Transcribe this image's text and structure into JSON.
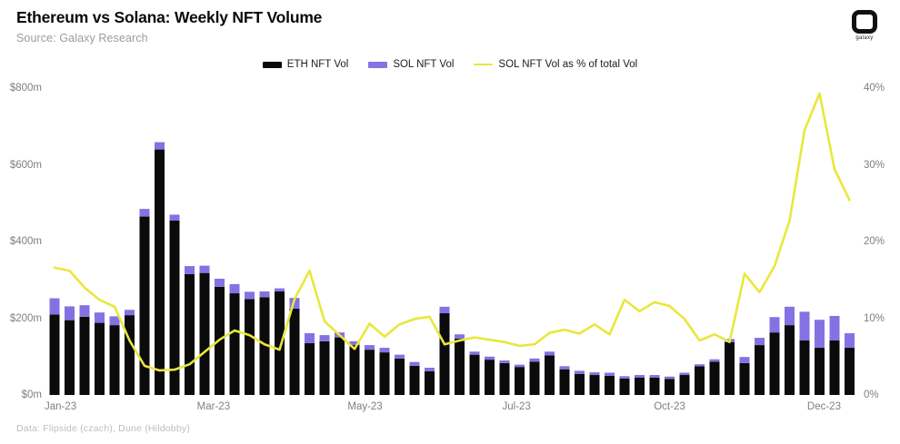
{
  "header": {
    "title": "Ethereum vs Solana: Weekly NFT Volume",
    "source": "Source: Galaxy Research",
    "logo_text": "galaxy"
  },
  "legend": [
    {
      "label": "ETH NFT Vol",
      "color": "#0b0b0b",
      "type": "bar"
    },
    {
      "label": "SOL NFT Vol",
      "color": "#8472e3",
      "type": "bar"
    },
    {
      "label": "SOL NFT Vol as % of total Vol",
      "color": "#e9e73c",
      "type": "line"
    }
  ],
  "footer": {
    "credit": "Data: Flipside (czach), Dune (Hildobby)"
  },
  "chart_data": {
    "type": "bar",
    "subtype": "stacked-bars-with-line",
    "title": "Ethereum vs Solana: Weekly NFT Volume",
    "x_unit": "week of 2023",
    "grid": false,
    "legend_position": "top",
    "ylim_left": [
      0,
      800
    ],
    "ylim_right": [
      0,
      40
    ],
    "y_ticks_left": [
      {
        "value": 0,
        "label": "$0m"
      },
      {
        "value": 200,
        "label": "$200m"
      },
      {
        "value": 400,
        "label": "$400m"
      },
      {
        "value": 600,
        "label": "$600m"
      },
      {
        "value": 800,
        "label": "$800m"
      }
    ],
    "y_ticks_right": [
      {
        "value": 0,
        "label": "0%"
      },
      {
        "value": 10,
        "label": "10%"
      },
      {
        "value": 20,
        "label": "20%"
      },
      {
        "value": 30,
        "label": "30%"
      },
      {
        "value": 40,
        "label": "40%"
      }
    ],
    "x_ticks": [
      {
        "at": 0.4,
        "label": "Jan-23"
      },
      {
        "at": 10.6,
        "label": "Mar-23"
      },
      {
        "at": 20.7,
        "label": "May-23"
      },
      {
        "at": 30.8,
        "label": "Jul-23"
      },
      {
        "at": 41.0,
        "label": "Oct-23"
      },
      {
        "at": 51.3,
        "label": "Dec-23"
      }
    ],
    "series": [
      {
        "name": "ETH NFT Vol",
        "axis": "left",
        "unit": "$m",
        "color": "#0b0b0b",
        "values": [
          210,
          195,
          204,
          188,
          182,
          208,
          465,
          640,
          455,
          315,
          318,
          282,
          265,
          250,
          255,
          270,
          225,
          135,
          140,
          150,
          130,
          118,
          111,
          95,
          76,
          62,
          213,
          147,
          105,
          92,
          83,
          73,
          87,
          103,
          67,
          55,
          52,
          50,
          43,
          45,
          45,
          42,
          52,
          75,
          87,
          138,
          83,
          130,
          163,
          182,
          142,
          123,
          142,
          123
        ]
      },
      {
        "name": "SOL NFT Vol",
        "axis": "left",
        "unit": "$m",
        "color": "#8472e3",
        "values": [
          42,
          36,
          30,
          27,
          23,
          14,
          20,
          19,
          15,
          21,
          19,
          21,
          24,
          19,
          15,
          8,
          28,
          26,
          16,
          13,
          10,
          12,
          12,
          10,
          10,
          9,
          17,
          11,
          8,
          8,
          7,
          6,
          8,
          10,
          8,
          8,
          7,
          8,
          6,
          7,
          7,
          6,
          6,
          5,
          6,
          8,
          16,
          19,
          40,
          48,
          75,
          73,
          64,
          38
        ]
      },
      {
        "name": "SOL NFT Vol as % of total Vol",
        "axis": "right",
        "unit": "%",
        "color": "#e9e73c",
        "values": [
          16.6,
          16.2,
          14.0,
          12.4,
          11.5,
          7.1,
          3.8,
          3.2,
          3.3,
          4.0,
          5.6,
          7.2,
          8.4,
          7.8,
          6.6,
          5.9,
          12.5,
          16.2,
          9.6,
          7.8,
          6.0,
          9.3,
          7.6,
          9.2,
          9.9,
          10.2,
          6.6,
          7.1,
          7.5,
          7.2,
          6.9,
          6.4,
          6.6,
          8.1,
          8.5,
          8.0,
          9.2,
          7.9,
          12.4,
          10.9,
          12.1,
          11.6,
          9.9,
          7.1,
          7.9,
          6.9,
          15.8,
          13.4,
          16.8,
          22.7,
          34.5,
          39.3,
          29.4,
          25.4
        ]
      }
    ]
  }
}
